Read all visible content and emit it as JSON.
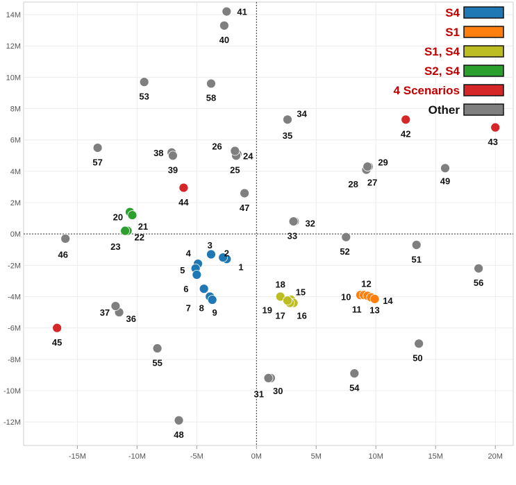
{
  "chart_data": {
    "type": "scatter",
    "xlim": [
      -19.5,
      21.5
    ],
    "ylim": [
      -13.5,
      14.8
    ],
    "x_ticks": [
      -15,
      -10,
      -5,
      0,
      5,
      10,
      15,
      20
    ],
    "y_ticks": [
      -12,
      -10,
      -8,
      -6,
      -4,
      -2,
      0,
      2,
      4,
      6,
      8,
      10,
      12,
      14
    ],
    "x_tick_labels": [
      "-15M",
      "-10M",
      "-5M",
      "0M",
      "5M",
      "10M",
      "15M",
      "20M"
    ],
    "y_tick_labels": [
      "-12M",
      "-10M",
      "-8M",
      "-6M",
      "-4M",
      "-2M",
      "0M",
      "2M",
      "4M",
      "6M",
      "8M",
      "10M",
      "12M",
      "14M"
    ],
    "grid": true,
    "legend_position": "top-right",
    "legend": [
      {
        "name": "S4",
        "color": "#1f77b4"
      },
      {
        "name": "S1",
        "color": "#ff7f0e"
      },
      {
        "name": "S1, S4",
        "color": "#bcbd22"
      },
      {
        "name": "S2, S4",
        "color": "#2ca02c"
      },
      {
        "name": "4 Scenarios",
        "color": "#d62728"
      },
      {
        "name": "Other",
        "color": "#7f7f7f"
      }
    ],
    "points": [
      {
        "id": "1",
        "x": -2.5,
        "y": -1.6,
        "group": 0,
        "lx": 1.2,
        "ly": -0.5
      },
      {
        "id": "2",
        "x": -2.8,
        "y": -1.5,
        "group": 0,
        "lx": 0.3,
        "ly": 0.3
      },
      {
        "id": "3",
        "x": -3.8,
        "y": -1.3,
        "group": 0,
        "lx": -0.1,
        "ly": 0.6
      },
      {
        "id": "4",
        "x": -4.9,
        "y": -1.9,
        "group": 0,
        "lx": -0.8,
        "ly": 0.7
      },
      {
        "id": "5",
        "x": -5.1,
        "y": -2.2,
        "group": 0,
        "lx": -1.1,
        "ly": -0.1
      },
      {
        "id": "6",
        "x": -5.0,
        "y": -2.6,
        "group": 0,
        "lx": -0.9,
        "ly": -0.9
      },
      {
        "id": "7",
        "x": -4.4,
        "y": -3.5,
        "group": 0,
        "lx": -1.3,
        "ly": -1.2
      },
      {
        "id": "8",
        "x": -3.9,
        "y": -4.0,
        "group": 0,
        "lx": -0.7,
        "ly": -0.7
      },
      {
        "id": "9",
        "x": -3.7,
        "y": -4.2,
        "group": 0,
        "lx": 0.2,
        "ly": -0.8
      },
      {
        "id": "10",
        "x": 8.7,
        "y": -3.9,
        "group": 1,
        "lx": -1.2,
        "ly": -0.1
      },
      {
        "id": "11",
        "x": 9.0,
        "y": -3.9,
        "group": 1,
        "lx": -0.6,
        "ly": -0.9
      },
      {
        "id": "12",
        "x": 9.3,
        "y": -3.95,
        "group": 1,
        "lx": -0.1,
        "ly": 0.8
      },
      {
        "id": "13",
        "x": 9.6,
        "y": -4.05,
        "group": 1,
        "lx": 0.3,
        "ly": -0.8
      },
      {
        "id": "14",
        "x": 9.9,
        "y": -4.15,
        "group": 1,
        "lx": 1.1,
        "ly": -0.1
      },
      {
        "id": "15",
        "x": 2.9,
        "y": -4.2,
        "group": 2,
        "lx": 0.8,
        "ly": 0.5
      },
      {
        "id": "16",
        "x": 3.1,
        "y": -4.4,
        "group": 2,
        "lx": 0.7,
        "ly": -0.8
      },
      {
        "id": "17",
        "x": 2.8,
        "y": -4.4,
        "group": 2,
        "lx": -0.8,
        "ly": -0.8
      },
      {
        "id": "18",
        "x": 2.0,
        "y": -4.0,
        "group": 2,
        "lx": 0.0,
        "ly": 0.8
      },
      {
        "id": "19",
        "x": 2.6,
        "y": -4.25,
        "group": 2,
        "lx": -1.7,
        "ly": -0.6
      },
      {
        "id": "20",
        "x": -10.6,
        "y": 1.4,
        "group": 3,
        "lx": -1.0,
        "ly": -0.3
      },
      {
        "id": "21",
        "x": -10.4,
        "y": 1.2,
        "group": 3,
        "lx": 0.9,
        "ly": -0.7
      },
      {
        "id": "22",
        "x": -10.8,
        "y": 0.2,
        "group": 3,
        "lx": 1.0,
        "ly": -0.4
      },
      {
        "id": "23",
        "x": -11.0,
        "y": 0.2,
        "group": 3,
        "lx": -0.8,
        "ly": -1.0
      },
      {
        "id": "24",
        "x": -1.6,
        "y": 5.1,
        "group": 5,
        "lx": 0.9,
        "ly": -0.1
      },
      {
        "id": "25",
        "x": -1.7,
        "y": 5.0,
        "group": 5,
        "lx": -0.1,
        "ly": -0.9
      },
      {
        "id": "26",
        "x": -1.8,
        "y": 5.3,
        "group": 5,
        "lx": -1.5,
        "ly": 0.3
      },
      {
        "id": "27",
        "x": 9.4,
        "y": 4.3,
        "group": 5,
        "lx": 0.3,
        "ly": -1.0
      },
      {
        "id": "28",
        "x": 9.2,
        "y": 4.1,
        "group": 5,
        "lx": -1.1,
        "ly": -0.9
      },
      {
        "id": "29",
        "x": 9.3,
        "y": 4.3,
        "group": 5,
        "lx": 1.3,
        "ly": 0.3
      },
      {
        "id": "30",
        "x": 1.2,
        "y": -9.2,
        "group": 5,
        "lx": 0.6,
        "ly": -0.8
      },
      {
        "id": "31",
        "x": 1.0,
        "y": -9.2,
        "group": 5,
        "lx": -0.8,
        "ly": -1.0
      },
      {
        "id": "32",
        "x": 3.2,
        "y": 0.8,
        "group": 5,
        "lx": 1.3,
        "ly": -0.1
      },
      {
        "id": "33",
        "x": 3.1,
        "y": 0.8,
        "group": 5,
        "lx": -0.1,
        "ly": -0.9
      },
      {
        "id": "34",
        "x": 2.6,
        "y": 7.3,
        "group": 5,
        "lx": 1.2,
        "ly": 0.4
      },
      {
        "id": "35",
        "x": 2.6,
        "y": 7.3,
        "group": 5,
        "lx": 0.0,
        "ly": -1.0
      },
      {
        "id": "36",
        "x": -11.5,
        "y": -5.0,
        "group": 5,
        "lx": 1.0,
        "ly": -0.4
      },
      {
        "id": "37",
        "x": -11.8,
        "y": -4.6,
        "group": 5,
        "lx": -0.9,
        "ly": -0.4
      },
      {
        "id": "38",
        "x": -7.1,
        "y": 5.2,
        "group": 5,
        "lx": -1.1,
        "ly": 0.0
      },
      {
        "id": "39",
        "x": -7.0,
        "y": 5.0,
        "group": 5,
        "lx": 0.0,
        "ly": -0.9
      },
      {
        "id": "40",
        "x": -2.7,
        "y": 13.3,
        "group": 5,
        "lx": 0.0,
        "ly": -0.9
      },
      {
        "id": "41",
        "x": -2.5,
        "y": 14.2,
        "group": 5,
        "lx": 1.3,
        "ly": 0.0
      },
      {
        "id": "42",
        "x": 12.5,
        "y": 7.3,
        "group": 4,
        "lx": 0.0,
        "ly": -0.9
      },
      {
        "id": "43",
        "x": 20.0,
        "y": 6.8,
        "group": 4,
        "lx": -0.2,
        "ly": -0.9
      },
      {
        "id": "44",
        "x": -6.1,
        "y": 2.95,
        "group": 4,
        "lx": 0.0,
        "ly": -0.9
      },
      {
        "id": "45",
        "x": -16.7,
        "y": -6.0,
        "group": 4,
        "lx": 0.0,
        "ly": -0.9
      },
      {
        "id": "46",
        "x": -16.0,
        "y": -0.3,
        "group": 5,
        "lx": -0.2,
        "ly": -1.0
      },
      {
        "id": "47",
        "x": -1.0,
        "y": 2.6,
        "group": 5,
        "lx": 0.0,
        "ly": -0.9
      },
      {
        "id": "48",
        "x": -6.5,
        "y": -11.9,
        "group": 5,
        "lx": 0.0,
        "ly": -0.9
      },
      {
        "id": "49",
        "x": 15.8,
        "y": 4.2,
        "group": 5,
        "lx": 0.0,
        "ly": -0.8
      },
      {
        "id": "50",
        "x": 13.6,
        "y": -7.0,
        "group": 5,
        "lx": -0.1,
        "ly": -0.9
      },
      {
        "id": "51",
        "x": 13.4,
        "y": -0.7,
        "group": 5,
        "lx": 0.0,
        "ly": -0.9
      },
      {
        "id": "52",
        "x": 7.5,
        "y": -0.2,
        "group": 5,
        "lx": -0.1,
        "ly": -0.9
      },
      {
        "id": "53",
        "x": -9.4,
        "y": 9.7,
        "group": 5,
        "lx": 0.0,
        "ly": -0.9
      },
      {
        "id": "54",
        "x": 8.2,
        "y": -8.9,
        "group": 5,
        "lx": 0.0,
        "ly": -0.9
      },
      {
        "id": "55",
        "x": -8.3,
        "y": -7.3,
        "group": 5,
        "lx": 0.0,
        "ly": -0.9
      },
      {
        "id": "56",
        "x": 18.6,
        "y": -2.2,
        "group": 5,
        "lx": 0.0,
        "ly": -0.9
      },
      {
        "id": "57",
        "x": -13.3,
        "y": 5.5,
        "group": 5,
        "lx": 0.0,
        "ly": -0.9
      },
      {
        "id": "58",
        "x": -3.8,
        "y": 9.6,
        "group": 5,
        "lx": 0.0,
        "ly": -0.9
      }
    ]
  }
}
